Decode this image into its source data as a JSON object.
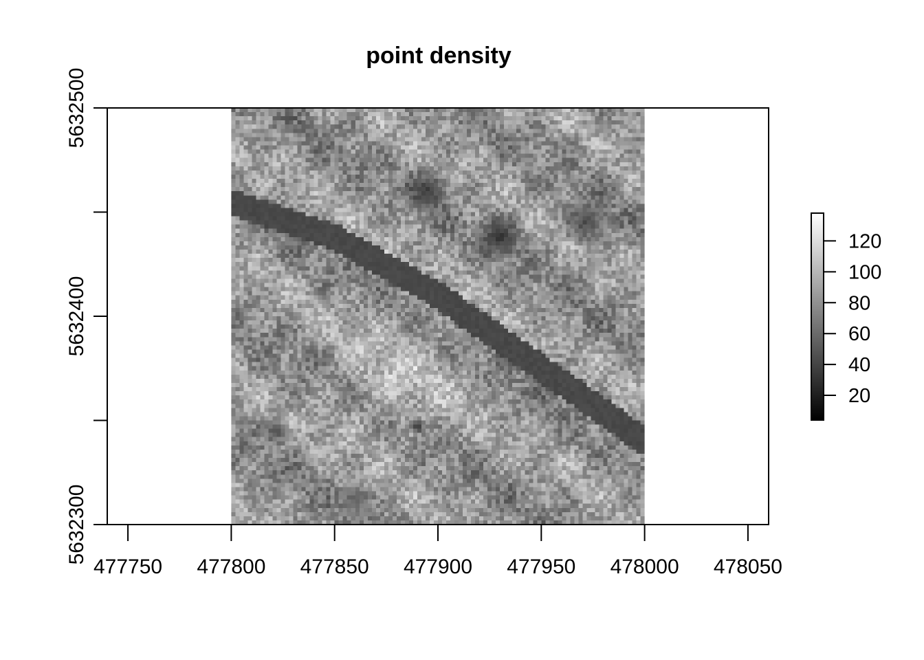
{
  "chart_data": {
    "type": "heatmap",
    "title": "point density",
    "xlabel": "",
    "ylabel": "",
    "x_range": [
      477740,
      478060
    ],
    "y_range": [
      5632300,
      5632500
    ],
    "raster_extent": {
      "x": [
        477800,
        478000
      ],
      "y": [
        5632300,
        5632500
      ]
    },
    "raster_cell_size": 2,
    "x_ticks": [
      477750,
      477800,
      477850,
      477900,
      477950,
      478000,
      478050
    ],
    "x_tick_labels": [
      "477750",
      "477800",
      "477850",
      "477900",
      "477950",
      "478000",
      "478050"
    ],
    "y_ticks": [
      5632300,
      5632350,
      5632400,
      5632450,
      5632500
    ],
    "y_tick_labels": [
      "5632300",
      "",
      "5632400",
      "",
      "5632500"
    ],
    "colorbar": {
      "range": [
        4,
        138
      ],
      "ticks": [
        20,
        40,
        60,
        80,
        100,
        120
      ],
      "tick_labels": [
        "20",
        "40",
        "60",
        "80",
        "100",
        "120"
      ],
      "colors": [
        "#000000",
        "#ffffff"
      ]
    },
    "features": {
      "road": {
        "points": [
          [
            477800,
            5632455
          ],
          [
            477850,
            5632438
          ],
          [
            477900,
            5632410
          ],
          [
            477950,
            5632375
          ],
          [
            478000,
            5632340
          ]
        ],
        "half_width": 6,
        "density": 42
      },
      "dark_patches": [
        {
          "x": 477895,
          "y": 5632460,
          "radius": 13,
          "density": 35
        },
        {
          "x": 477930,
          "y": 5632438,
          "radius": 14,
          "density": 32
        },
        {
          "x": 477972,
          "y": 5632445,
          "radius": 14,
          "density": 42
        },
        {
          "x": 477890,
          "y": 5632347,
          "radius": 5,
          "density": 28
        },
        {
          "x": 477822,
          "y": 5632345,
          "radius": 8,
          "density": 45
        },
        {
          "x": 477860,
          "y": 5632312,
          "radius": 10,
          "density": 55
        }
      ],
      "bright_zone": {
        "x": 477880,
        "y": 5632370,
        "radius": 45,
        "density": 100
      },
      "background_density": 82
    },
    "grid": false,
    "legend": "right"
  }
}
